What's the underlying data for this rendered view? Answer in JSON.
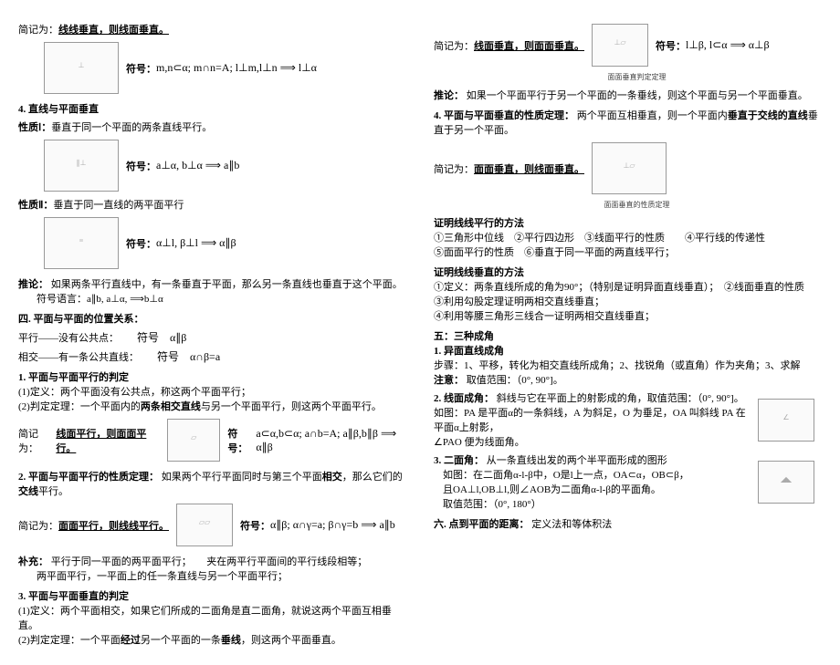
{
  "left": {
    "l1": "简记为：",
    "l1b": "线线垂直，则线面垂直。",
    "f1_label": "符号：",
    "f1": "m,n⊂α; m∩n=A; l⊥m,l⊥n ⟹ l⊥α",
    "h4": "4. 直线与平面垂直",
    "p1_label": "性质Ⅰ：",
    "p1": "垂直于同一个平面的两条直线平行。",
    "f2_label": "符号：",
    "f2": "a⊥α, b⊥α ⟹ a∥b",
    "p2_label": "性质Ⅱ：",
    "p2": "垂直于同一直线的两平面平行",
    "f3_label": "符号：",
    "f3": "α⊥l, β⊥l ⟹ α∥β",
    "tl_label": "推论：",
    "tl": "如果两条平行直线中，有一条垂直于平面，那么另一条直线也垂直于这个平面。",
    "tl_sym": "符号语言：a∥b, a⊥α, ⟹b⊥α",
    "h4b": "四. 平面与平面的位置关系：",
    "px1": "平行——没有公共点：",
    "px1s": "符号　α∥β",
    "px2": "相交——有一条公共直线：",
    "px2s": "符号　α∩β=a",
    "h1": "1. 平面与平面平行的判定",
    "d1": "(1)定义：两个平面没有公共点，称这两个平面平行；",
    "d2_a": "(2)判定定理：一个平面内的",
    "d2_b": "两条相交直线",
    "d2_c": "与另一个平面平行，则这两个平面平行。",
    "jj1": "简记为：",
    "jj1b": "线面平行，则面面平行。",
    "f4_label": "符号：",
    "f4": "a⊂α,b⊂α; a∩b=A; a∥β,b∥β ⟹ α∥β",
    "h2": "2. 平面与平面平行的性质定理：",
    "h2b": "如果两个平行平面同时与第三个平面",
    "h2c": "相交",
    "h2d": "，那么它们的",
    "h2e": "交线",
    "h2f": "平行。",
    "jj2": "简记为：",
    "jj2b": "面面平行，则线线平行。",
    "f5_label": "符号：",
    "f5": "α∥β; α∩γ=a; β∩γ=b ⟹ a∥b",
    "bc_label": "补充：",
    "bc1": "平行于同一平面的两平面平行；　　夹在两平行平面间的平行线段相等；",
    "bc2": "两平面平行，一平面上的任一条直线与另一个平面平行；",
    "h3": "3. 平面与平面垂直的判定",
    "d3a": "(1)定义：两个平面相交，如果它们所成的二面角是直二面角，就说这两个平面互相垂直。",
    "d3b_a": "(2)判定定理：一个平面",
    "d3b_b": "经过",
    "d3b_c": "另一个平面的一条",
    "d3b_d": "垂线",
    "d3b_e": "，则这两个平面垂直。"
  },
  "right": {
    "l1": "简记为：",
    "l1b": "线面垂直，则面面垂直。",
    "f1_label": "符号：",
    "f1": "l⊥β, l⊂α ⟹ α⊥β",
    "cap1": "面面垂直判定定理",
    "tl_label": "推论：",
    "tl": "如果一个平面平行于另一个平面的一条垂线，则这个平面与另一个平面垂直。",
    "h4": "4. 平面与平面垂直的性质定理：",
    "h4b": "两个平面互相垂直，则一个平面内",
    "h4c": "垂直于交线的直线",
    "h4d": "垂直于另一个平面。",
    "jj": "简记为：",
    "jjb": "面面垂直，则线面垂直。",
    "cap2": "面面垂直的性质定理",
    "zm1": "证明线线平行的方法",
    "zm1_1": "①三角形中位线　②平行四边形　③线面平行的性质　　④平行线的传递性",
    "zm1_2": "⑤面面平行的性质　⑥垂直于同一平面的两直线平行；",
    "zm2": "证明线线垂直的方法",
    "zm2_1": "①定义：两条直线所成的角为90°；（特别是证明异面直线垂直）；　②线面垂直的性质",
    "zm2_2": "③利用勾股定理证明两相交直线垂直；",
    "zm2_3": "④利用等腰三角形三线合一证明两相交直线垂直；",
    "h5": "五：三种成角",
    "h5_1": "1. 异面直线成角",
    "h5_1a": "步骤：1、平移，转化为相交直线所成角；2、找锐角（或直角）作为夹角；3、求解",
    "h5_1b_label": "注意：",
    "h5_1b": "取值范围：（0°, 90°]。",
    "h5_2": "2. 线面成角：",
    "h5_2a": "斜线与它在平面上的射影成的角，取值范围：（0°, 90°]。",
    "h5_2b": "如图：PA 是平面α的一条斜线，A 为斜足，O 为垂足，OA 叫斜线 PA 在平面α上射影，",
    "h5_2c": "∠PAO 便为线面角。",
    "h5_3": "3. 二面角：",
    "h5_3a": "从一条直线出发的两个半平面形成的图形",
    "h5_3b": "如图：在二面角α-l-β中，O是l上一点，OA⊂α，OB⊂β，",
    "h5_3c": "且OA⊥l,OB⊥l,则∠AOB为二面角α-l-β的平面角。",
    "h5_3d": "取值范围：（0°, 180°）",
    "h6": "六. 点到平面的距离：",
    "h6a": "定义法和等体积法"
  }
}
